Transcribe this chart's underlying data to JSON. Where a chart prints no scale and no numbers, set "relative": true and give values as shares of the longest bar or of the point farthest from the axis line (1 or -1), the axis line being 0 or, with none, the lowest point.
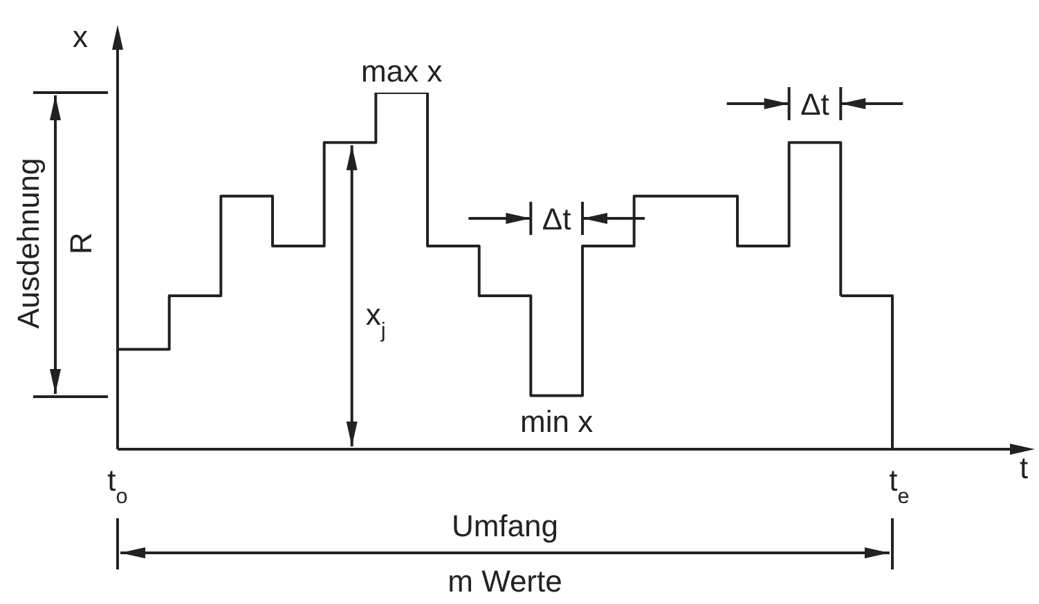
{
  "chart_data": {
    "type": "step",
    "relative": true,
    "ylabel": "x",
    "color": "#222222",
    "categories": [
      null,
      null,
      null,
      null,
      null,
      null,
      null,
      null,
      null,
      null,
      null,
      null,
      null,
      null,
      null
    ],
    "values": [
      0.28,
      0.43,
      0.71,
      0.57,
      0.86,
      1,
      0.57,
      0.43,
      0.15,
      0.57,
      0.71,
      0.71,
      0.57,
      0.86,
      0.43
    ],
    "annotations": [
      "max x",
      "min x",
      "Δt",
      "Δt",
      "x$_{j}$",
      "Ausdehnung",
      "R",
      "t$_{o}$",
      "t$_{e}$",
      "Umfang",
      "m Werte",
      "t"
    ]
  }
}
